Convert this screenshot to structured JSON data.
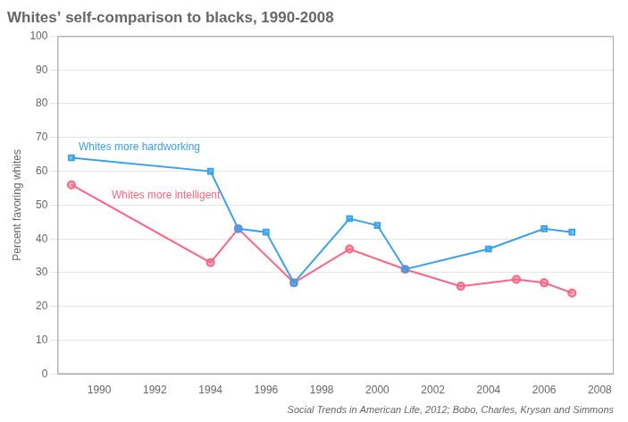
{
  "chart_data": {
    "type": "line",
    "title": "Whites’ self-comparison to blacks, 1990-2008",
    "y_label": "Percent favoring whites",
    "caption": "Social Trends in American Life, 2012; Bobo, Charles, Krysan and Simmons",
    "series": [
      {
        "name": "Whites more hardworking",
        "marker": "square",
        "x": [
          1989,
          1994,
          1995,
          1996,
          1997,
          1999,
          2000,
          2001,
          2004,
          2006,
          2007
        ],
        "values": [
          64,
          60,
          43,
          42,
          27,
          46,
          44,
          31,
          37,
          43,
          42
        ]
      },
      {
        "name": "Whites more intelligent",
        "marker": "circle",
        "x": [
          1989,
          1994,
          1995,
          1997,
          1999,
          2001,
          2003,
          2005,
          2006,
          2007
        ],
        "values": [
          56,
          33,
          43,
          27,
          37,
          31,
          26,
          28,
          27,
          24
        ]
      }
    ],
    "xlim": [
      1988.5,
      2008.5
    ],
    "xticks": [
      1990,
      1992,
      1994,
      1996,
      1998,
      2000,
      2002,
      2004,
      2006,
      2008
    ],
    "ylim": [
      0,
      100
    ],
    "yticks": [
      0,
      10,
      20,
      30,
      40,
      50,
      60,
      70,
      80,
      90,
      100
    ],
    "grid": "y"
  }
}
